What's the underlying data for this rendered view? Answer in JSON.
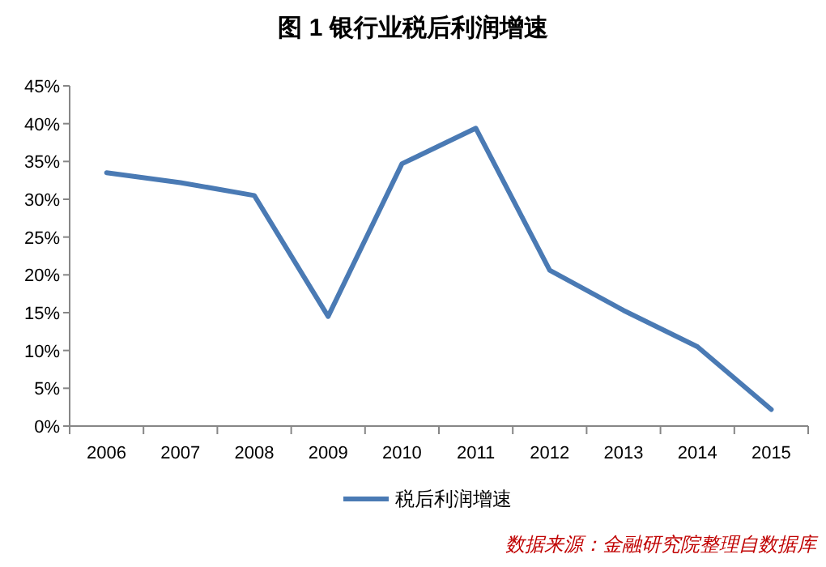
{
  "chart_data": {
    "type": "line",
    "title": "图 1 银行业税后利润增速",
    "categories": [
      "2006",
      "2007",
      "2008",
      "2009",
      "2010",
      "2011",
      "2012",
      "2013",
      "2014",
      "2015"
    ],
    "series": [
      {
        "name": "税后利润增速",
        "color": "#4a7ab4",
        "values": [
          33.5,
          32.2,
          30.5,
          14.5,
          34.7,
          39.4,
          20.6,
          15.3,
          10.5,
          2.2
        ]
      }
    ],
    "ylim": [
      0,
      45
    ],
    "yticks": [
      {
        "value": 0,
        "label": "0%"
      },
      {
        "value": 5,
        "label": "5%"
      },
      {
        "value": 10,
        "label": "10%"
      },
      {
        "value": 15,
        "label": "15%"
      },
      {
        "value": 20,
        "label": "20%"
      },
      {
        "value": 25,
        "label": "25%"
      },
      {
        "value": 30,
        "label": "30%"
      },
      {
        "value": 35,
        "label": "35%"
      },
      {
        "value": 40,
        "label": "40%"
      },
      {
        "value": 45,
        "label": "45%"
      }
    ],
    "grid": false,
    "legend": "bottom",
    "marker": "none",
    "line_style": "solid",
    "annotations": [
      "数据来源：金融研究院整理自数据库"
    ]
  }
}
